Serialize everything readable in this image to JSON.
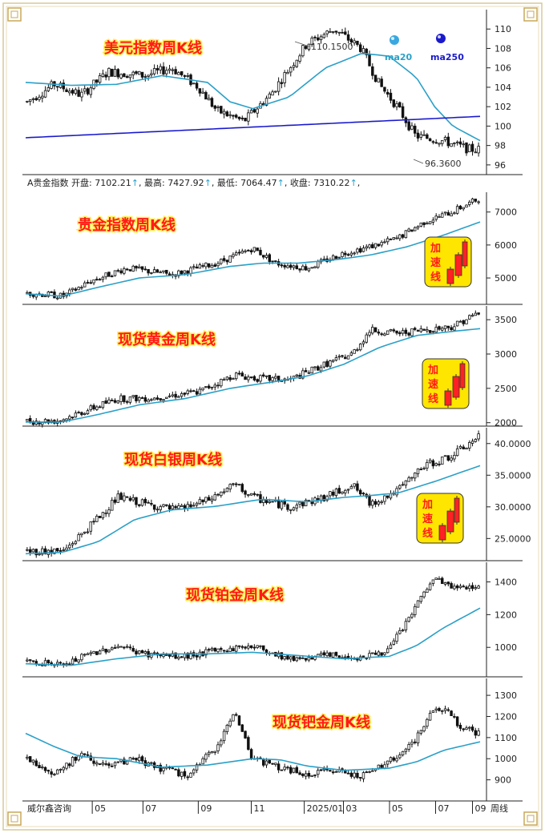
{
  "footer": {
    "source": "威尔鑫咨询",
    "period_label": "周线",
    "x_labels": [
      "05",
      "07",
      "09",
      "11",
      "2025/01",
      "03",
      "05",
      "07",
      "09"
    ]
  },
  "legend": {
    "ma20": "ma20",
    "ma250": "ma250",
    "ma20_color": "#2aa0c8",
    "ma250_color": "#1a1acc"
  },
  "accel_label": [
    "加",
    "速",
    "线"
  ],
  "info_bar": {
    "name": "A贵金指数",
    "open_label": "开盘:",
    "open": "7102.21",
    "high_label": "最高:",
    "high": "7427.92",
    "low_label": "最低:",
    "low": "7064.47",
    "close_label": "收盘:",
    "close": "7310.22"
  },
  "colors": {
    "candle": "#111111",
    "ma_line": "#2aa0c8",
    "long_ma": "#1a1acc",
    "title_fill": "#ff1a1a",
    "title_outline": "#ffee55",
    "badge": "#ffe600"
  },
  "chart_data": [
    {
      "type": "candlestick",
      "title": "美元指数周K线",
      "ylim": [
        95,
        112
      ],
      "yticks": [
        "96",
        "98",
        "100",
        "102",
        "104",
        "106",
        "108",
        "110"
      ],
      "annotations": {
        "high": "110.1500",
        "low": "96.3600"
      },
      "knots": [
        [
          0,
          102.5
        ],
        [
          0.06,
          104.3
        ],
        [
          0.12,
          103.2
        ],
        [
          0.18,
          105.6
        ],
        [
          0.26,
          105.2
        ],
        [
          0.32,
          106
        ],
        [
          0.38,
          104
        ],
        [
          0.42,
          101.6
        ],
        [
          0.48,
          100.5
        ],
        [
          0.54,
          103.3
        ],
        [
          0.62,
          108.5
        ],
        [
          0.68,
          110
        ],
        [
          0.74,
          108
        ],
        [
          0.78,
          104.3
        ],
        [
          0.82,
          102
        ],
        [
          0.86,
          99
        ],
        [
          0.92,
          98.5
        ],
        [
          0.98,
          97.6
        ],
        [
          1,
          97.6
        ]
      ],
      "ma20": [
        [
          0,
          104.5
        ],
        [
          0.1,
          104.2
        ],
        [
          0.2,
          104.3
        ],
        [
          0.3,
          105.2
        ],
        [
          0.4,
          104.5
        ],
        [
          0.45,
          102.5
        ],
        [
          0.5,
          101.8
        ],
        [
          0.58,
          103
        ],
        [
          0.66,
          106
        ],
        [
          0.74,
          107.5
        ],
        [
          0.8,
          107.2
        ],
        [
          0.86,
          105
        ],
        [
          0.9,
          102
        ],
        [
          0.94,
          100
        ],
        [
          1,
          98.5
        ]
      ],
      "ma250": [
        [
          0,
          98.8
        ],
        [
          1,
          101
        ]
      ],
      "accel": false
    },
    {
      "type": "candlestick",
      "title": "贵金指数周K线",
      "ylim": [
        4200,
        7600
      ],
      "yticks": [
        "5000",
        "6000",
        "7000"
      ],
      "knots": [
        [
          0,
          4550
        ],
        [
          0.08,
          4450
        ],
        [
          0.14,
          4900
        ],
        [
          0.22,
          5300
        ],
        [
          0.32,
          5100
        ],
        [
          0.42,
          5450
        ],
        [
          0.5,
          5900
        ],
        [
          0.55,
          5450
        ],
        [
          0.62,
          5300
        ],
        [
          0.7,
          5750
        ],
        [
          0.76,
          5950
        ],
        [
          0.82,
          6200
        ],
        [
          0.88,
          6700
        ],
        [
          0.94,
          7000
        ],
        [
          1,
          7400
        ]
      ],
      "ma20": [
        [
          0,
          4520
        ],
        [
          0.08,
          4450
        ],
        [
          0.16,
          4720
        ],
        [
          0.25,
          5000
        ],
        [
          0.35,
          5100
        ],
        [
          0.45,
          5350
        ],
        [
          0.52,
          5450
        ],
        [
          0.6,
          5450
        ],
        [
          0.68,
          5550
        ],
        [
          0.76,
          5700
        ],
        [
          0.84,
          5950
        ],
        [
          0.92,
          6300
        ],
        [
          1,
          6700
        ]
      ],
      "ma250": null,
      "accel": true
    },
    {
      "type": "candlestick",
      "title": "现货黄金周K线",
      "ylim": [
        1950,
        3700
      ],
      "yticks": [
        "2000",
        "2500",
        "3000",
        "3500"
      ],
      "knots": [
        [
          0,
          2020
        ],
        [
          0.07,
          2030
        ],
        [
          0.14,
          2200
        ],
        [
          0.2,
          2350
        ],
        [
          0.28,
          2360
        ],
        [
          0.38,
          2450
        ],
        [
          0.46,
          2700
        ],
        [
          0.5,
          2650
        ],
        [
          0.58,
          2620
        ],
        [
          0.66,
          2850
        ],
        [
          0.72,
          3000
        ],
        [
          0.76,
          3350
        ],
        [
          0.82,
          3300
        ],
        [
          0.88,
          3350
        ],
        [
          0.94,
          3400
        ],
        [
          1,
          3600
        ]
      ],
      "ma20": [
        [
          0,
          2010
        ],
        [
          0.08,
          2010
        ],
        [
          0.16,
          2120
        ],
        [
          0.25,
          2260
        ],
        [
          0.35,
          2350
        ],
        [
          0.45,
          2500
        ],
        [
          0.55,
          2600
        ],
        [
          0.62,
          2680
        ],
        [
          0.7,
          2850
        ],
        [
          0.78,
          3100
        ],
        [
          0.86,
          3270
        ],
        [
          0.94,
          3330
        ],
        [
          1,
          3370
        ]
      ],
      "ma250": null,
      "accel": true
    },
    {
      "type": "candlestick",
      "title": "现货白银周K线",
      "ylim": [
        21.5,
        42.5
      ],
      "yticks": [
        "25.0000",
        "30.0000",
        "35.0000",
        "40.0000"
      ],
      "knots": [
        [
          0,
          23
        ],
        [
          0.08,
          23
        ],
        [
          0.14,
          27
        ],
        [
          0.2,
          31.5
        ],
        [
          0.26,
          30.5
        ],
        [
          0.33,
          29.5
        ],
        [
          0.4,
          31
        ],
        [
          0.46,
          33.5
        ],
        [
          0.5,
          31.5
        ],
        [
          0.58,
          30
        ],
        [
          0.66,
          31.5
        ],
        [
          0.72,
          33.5
        ],
        [
          0.76,
          30.5
        ],
        [
          0.82,
          32.5
        ],
        [
          0.88,
          36.5
        ],
        [
          0.94,
          38
        ],
        [
          1,
          41
        ]
      ],
      "ma20": [
        [
          0,
          22.6
        ],
        [
          0.08,
          22.8
        ],
        [
          0.16,
          24.5
        ],
        [
          0.24,
          28
        ],
        [
          0.32,
          29.5
        ],
        [
          0.42,
          30.1
        ],
        [
          0.52,
          31.2
        ],
        [
          0.62,
          30.8
        ],
        [
          0.7,
          31.5
        ],
        [
          0.76,
          31.8
        ],
        [
          0.82,
          32.2
        ],
        [
          0.9,
          34
        ],
        [
          1,
          36.5
        ]
      ],
      "ma250": null,
      "accel": true
    },
    {
      "type": "candlestick",
      "title": "现货铂金周K线",
      "ylim": [
        820,
        1520
      ],
      "yticks": [
        "1000",
        "1200",
        "1400"
      ],
      "knots": [
        [
          0,
          920
        ],
        [
          0.08,
          890
        ],
        [
          0.14,
          960
        ],
        [
          0.2,
          1010
        ],
        [
          0.26,
          960
        ],
        [
          0.34,
          940
        ],
        [
          0.42,
          980
        ],
        [
          0.5,
          1010
        ],
        [
          0.58,
          930
        ],
        [
          0.66,
          950
        ],
        [
          0.74,
          940
        ],
        [
          0.8,
          980
        ],
        [
          0.85,
          1200
        ],
        [
          0.9,
          1420
        ],
        [
          0.95,
          1360
        ],
        [
          1,
          1380
        ]
      ],
      "ma20": [
        [
          0,
          900
        ],
        [
          0.1,
          890
        ],
        [
          0.2,
          930
        ],
        [
          0.3,
          960
        ],
        [
          0.4,
          960
        ],
        [
          0.5,
          970
        ],
        [
          0.6,
          950
        ],
        [
          0.7,
          930
        ],
        [
          0.8,
          945
        ],
        [
          0.86,
          1010
        ],
        [
          0.92,
          1120
        ],
        [
          1,
          1240
        ]
      ],
      "ma250": null,
      "accel": false
    },
    {
      "type": "candlestick",
      "title": "现货钯金周K线",
      "ylim": [
        800,
        1380
      ],
      "yticks": [
        "900",
        "1000",
        "1100",
        "1200",
        "1300"
      ],
      "knots": [
        [
          0,
          1000
        ],
        [
          0.06,
          930
        ],
        [
          0.12,
          1020
        ],
        [
          0.18,
          960
        ],
        [
          0.24,
          1000
        ],
        [
          0.3,
          950
        ],
        [
          0.36,
          920
        ],
        [
          0.42,
          1060
        ],
        [
          0.46,
          1220
        ],
        [
          0.5,
          1000
        ],
        [
          0.56,
          960
        ],
        [
          0.62,
          920
        ],
        [
          0.68,
          950
        ],
        [
          0.74,
          920
        ],
        [
          0.8,
          980
        ],
        [
          0.86,
          1090
        ],
        [
          0.9,
          1230
        ],
        [
          0.93,
          1240
        ],
        [
          0.96,
          1150
        ],
        [
          1,
          1120
        ]
      ],
      "ma20": [
        [
          0,
          1120
        ],
        [
          0.06,
          1060
        ],
        [
          0.12,
          1010
        ],
        [
          0.2,
          1000
        ],
        [
          0.3,
          960
        ],
        [
          0.4,
          970
        ],
        [
          0.5,
          1000
        ],
        [
          0.56,
          995
        ],
        [
          0.62,
          965
        ],
        [
          0.7,
          945
        ],
        [
          0.8,
          955
        ],
        [
          0.86,
          985
        ],
        [
          0.92,
          1040
        ],
        [
          1,
          1080
        ]
      ],
      "ma250": null,
      "accel": false
    }
  ]
}
